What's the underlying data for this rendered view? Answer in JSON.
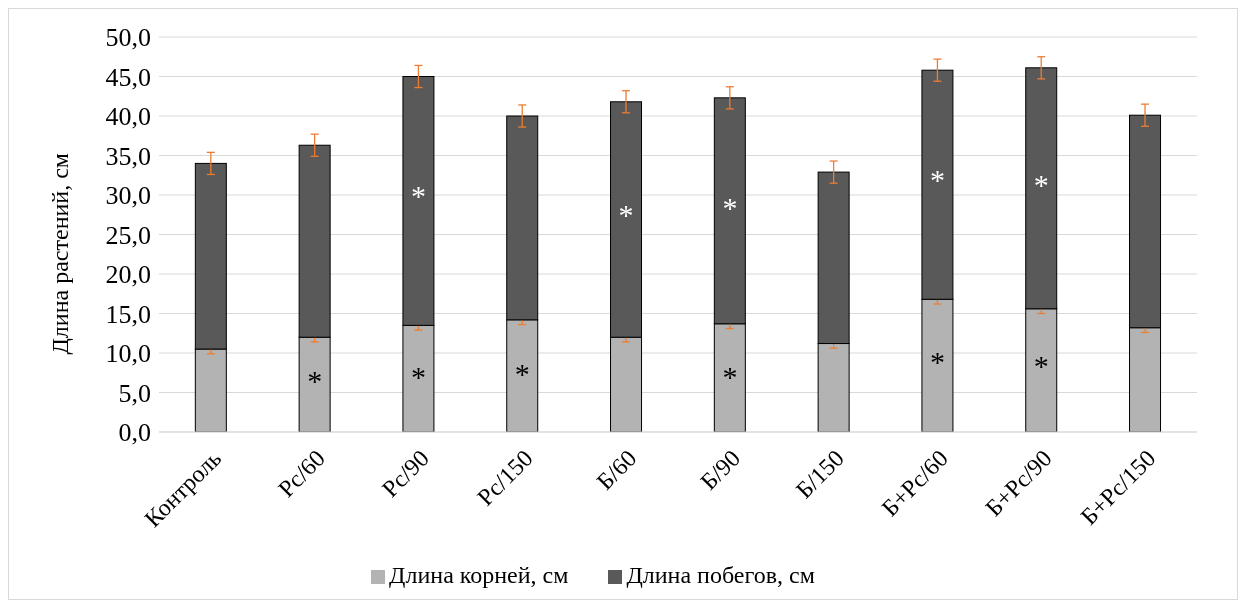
{
  "chart_data": {
    "type": "bar",
    "stacked": true,
    "ylabel": "Длина растений, см",
    "categories": [
      "Контроль",
      "Рс/60",
      "Рс/90",
      "Рс/150",
      "Б/60",
      "Б/90",
      "Б/150",
      "Б+Рс/60",
      "Б+Рс/90",
      "Б+Рс/150"
    ],
    "series": [
      {
        "name": "Длина корней, см",
        "color": "#b3b3b3",
        "values": [
          10.5,
          12.0,
          13.5,
          14.2,
          12.0,
          13.7,
          11.2,
          16.8,
          15.6,
          13.2
        ],
        "errors": [
          0.6,
          0.6,
          0.6,
          0.6,
          0.6,
          0.6,
          0.6,
          0.6,
          0.6,
          0.6
        ]
      },
      {
        "name": "Длина побегов, см",
        "color": "#595959",
        "values": [
          23.5,
          24.3,
          31.5,
          25.8,
          29.8,
          28.6,
          21.7,
          29.0,
          30.5,
          26.9
        ],
        "errors": [
          1.4,
          1.4,
          1.4,
          1.4,
          1.4,
          1.4,
          1.4,
          1.4,
          1.4,
          1.4
        ]
      }
    ],
    "ylim": [
      0,
      50
    ],
    "yticks": [
      {
        "value": 0,
        "label": "0,0"
      },
      {
        "value": 5,
        "label": "5,0"
      },
      {
        "value": 10,
        "label": "10,0"
      },
      {
        "value": 15,
        "label": "15,0"
      },
      {
        "value": 20,
        "label": "20,0"
      },
      {
        "value": 25,
        "label": "25,0"
      },
      {
        "value": 30,
        "label": "30,0"
      },
      {
        "value": 35,
        "label": "35,0"
      },
      {
        "value": 40,
        "label": "40,0"
      },
      {
        "value": 45,
        "label": "45,0"
      },
      {
        "value": 50,
        "label": "50,0"
      }
    ],
    "grid": "y",
    "legend": "bottom",
    "annotations": [
      {
        "text": "*",
        "x": "Рс/60",
        "y": 6.5
      },
      {
        "text": "*",
        "x": "Рс/90",
        "y": 7.0
      },
      {
        "text": "*",
        "x": "Рс/150",
        "y": 7.4
      },
      {
        "text": "*",
        "x": "Б/90",
        "y": 7.0
      },
      {
        "text": "*",
        "x": "Б+Рс/60",
        "y": 9.0
      },
      {
        "text": "*",
        "x": "Б+Рс/90",
        "y": 8.4
      },
      {
        "text": "*",
        "x": "Рс/90",
        "y": 30.0
      },
      {
        "text": "*",
        "x": "Б/60",
        "y": 27.5
      },
      {
        "text": "*",
        "x": "Б/90",
        "y": 28.5
      },
      {
        "text": "*",
        "x": "Б+Рс/60",
        "y": 32.0
      },
      {
        "text": "*",
        "x": "Б+Рс/90",
        "y": 31.3
      }
    ]
  }
}
